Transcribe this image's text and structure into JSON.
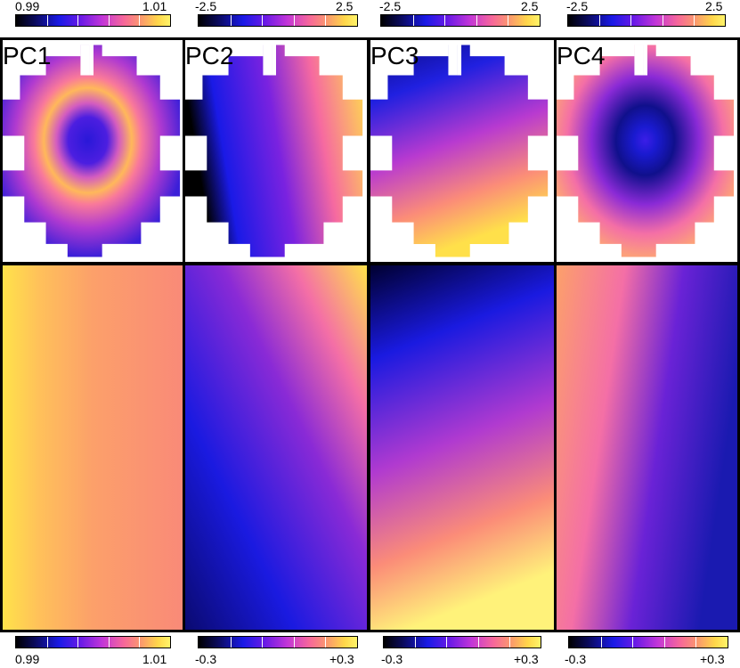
{
  "top_colorbars": [
    {
      "min": "0.99",
      "max": "1.01"
    },
    {
      "min": "-2.5",
      "max": "2.5"
    },
    {
      "min": "-2.5",
      "max": "2.5"
    },
    {
      "min": "-2.5",
      "max": "2.5"
    }
  ],
  "bottom_colorbars": [
    {
      "min": "0.99",
      "max": "1.01"
    },
    {
      "min": "-0.3",
      "max": "+0.3"
    },
    {
      "min": "-0.3",
      "max": "+0.3"
    },
    {
      "min": "-0.3",
      "max": "+0.3"
    }
  ],
  "panels": [
    {
      "label": "PC1"
    },
    {
      "label": "PC2"
    },
    {
      "label": "PC3"
    },
    {
      "label": "PC4"
    }
  ],
  "colormap": [
    "#000000",
    "#1a1ae6",
    "#c236d8",
    "#f7679a",
    "#ffd64a",
    "#fff46a"
  ]
}
